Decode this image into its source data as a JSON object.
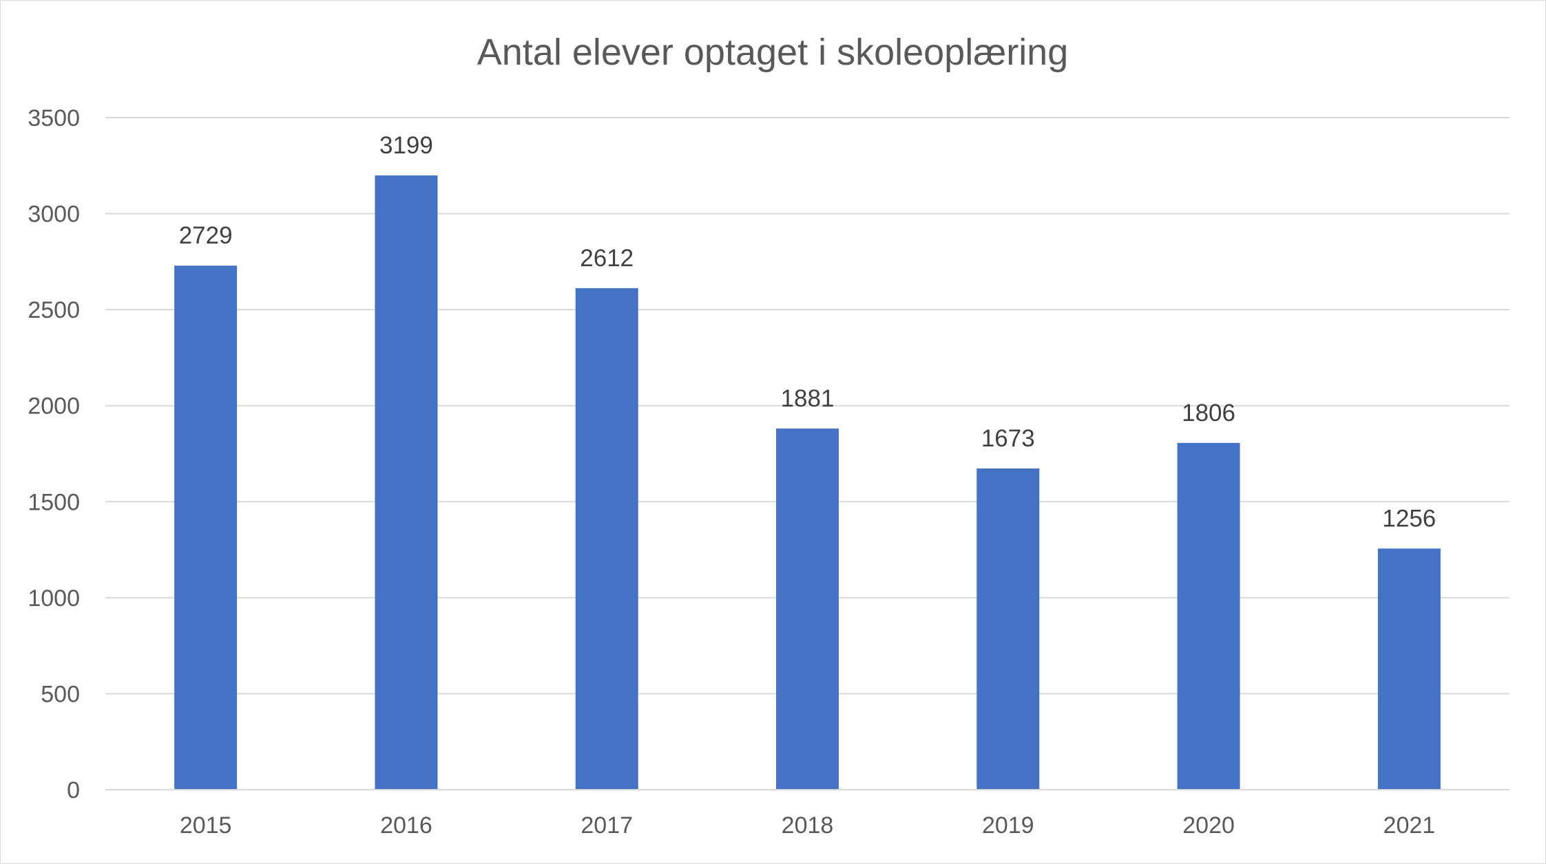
{
  "chart_data": {
    "type": "bar",
    "title": "Antal elever optaget i skoleoplæring",
    "xlabel": "",
    "ylabel": "",
    "categories": [
      "2015",
      "2016",
      "2017",
      "2018",
      "2019",
      "2020",
      "2021"
    ],
    "values": [
      2729,
      3199,
      2612,
      1881,
      1673,
      1806,
      1256
    ],
    "data_labels": [
      "2729",
      "3199",
      "2612",
      "1881",
      "1673",
      "1806",
      "1256"
    ],
    "ylim": [
      0,
      3500
    ],
    "y_ticks": [
      "0",
      "500",
      "1000",
      "1500",
      "2000",
      "2500",
      "3000",
      "3500"
    ],
    "grid": true,
    "legend": "none",
    "bar_color": "#4472c4",
    "grid_color": "#d9d9d9"
  }
}
